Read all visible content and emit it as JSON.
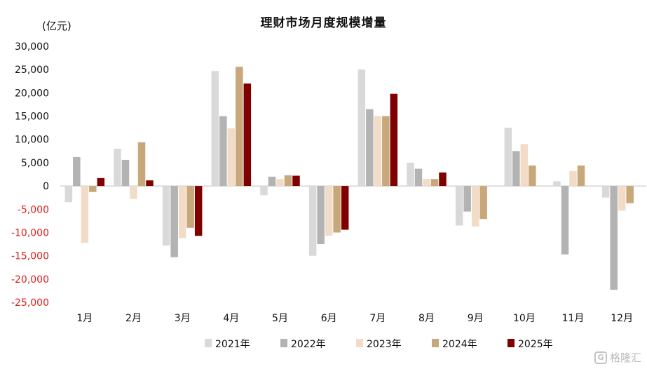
{
  "chart_data": {
    "type": "bar",
    "title": "理财市场月度规模增量",
    "unit_label": "(亿元)",
    "categories": [
      "1月",
      "2月",
      "3月",
      "4月",
      "5月",
      "6月",
      "7月",
      "8月",
      "9月",
      "10月",
      "11月",
      "12月"
    ],
    "ylim": [
      -25000,
      30000
    ],
    "yticks": [
      30000,
      25000,
      20000,
      15000,
      10000,
      5000,
      0,
      -5000,
      -10000,
      -15000,
      -20000,
      -25000
    ],
    "ytick_labels": [
      "30,000",
      "25,000",
      "20,000",
      "15,000",
      "10,000",
      "5,000",
      "0",
      "-5,000",
      "-10,000",
      "-15,000",
      "-20,000",
      "-25,000"
    ],
    "negative_tick_color": "#e0201b",
    "grid": false,
    "legend_position": "bottom",
    "series": [
      {
        "name": "2021年",
        "color": "#d9d9d9",
        "values": [
          -3500,
          8000,
          -12800,
          24700,
          -2000,
          -15000,
          25000,
          5000,
          -8500,
          12500,
          1000,
          -2500
        ]
      },
      {
        "name": "2022年",
        "color": "#b3b3b3",
        "values": [
          6200,
          5600,
          -15300,
          15000,
          2000,
          -12500,
          16500,
          3700,
          -5500,
          7500,
          -14700,
          -22300
        ]
      },
      {
        "name": "2023年",
        "color": "#f2dcc8",
        "values": [
          -12200,
          -2800,
          -11200,
          12400,
          1500,
          -10700,
          15000,
          1500,
          -8700,
          9000,
          3200,
          -5300
        ]
      },
      {
        "name": "2024年",
        "color": "#c8a87a",
        "values": [
          -1300,
          9400,
          -9000,
          25600,
          2300,
          -10000,
          15000,
          1500,
          -7100,
          4400,
          4400,
          -3700
        ]
      },
      {
        "name": "2025年",
        "color": "#800000",
        "values": [
          1700,
          1200,
          -10700,
          22000,
          2200,
          -9400,
          19800,
          2900,
          null,
          null,
          null,
          null
        ]
      }
    ]
  },
  "watermark": {
    "text": "格隆汇",
    "logo_letter": "G"
  }
}
